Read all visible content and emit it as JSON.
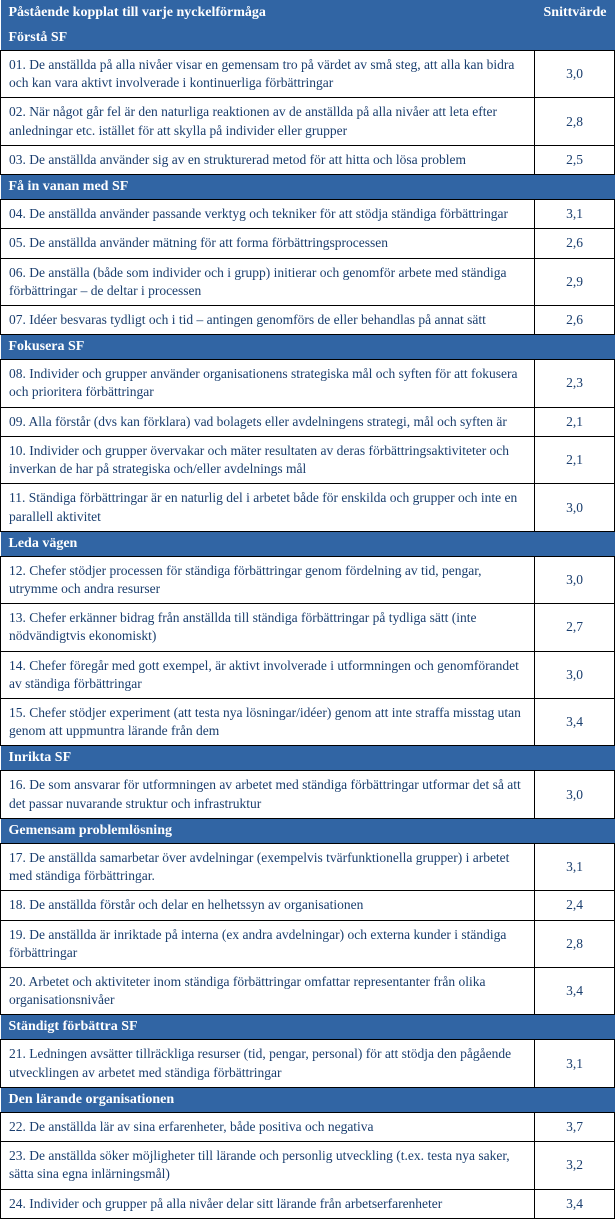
{
  "header": {
    "statement_label": "Påstående kopplat till varje nyckelförmåga",
    "value_label": "Snittvärde"
  },
  "sections": [
    {
      "title": "Förstå SF",
      "rows": [
        {
          "text": "01. De anställda på alla nivåer visar en gemensam tro på värdet av små steg, att alla kan bidra och kan vara aktivt involverade i kontinuerliga förbättringar",
          "value": "3,0"
        },
        {
          "text": "02. När något går fel är den naturliga reaktionen av de anställda på alla nivåer att leta efter anledningar etc. istället för att skylla på individer eller grupper",
          "value": "2,8"
        },
        {
          "text": "03. De anställda använder sig av en strukturerad metod för att hitta och lösa problem",
          "value": "2,5"
        }
      ]
    },
    {
      "title": "Få in vanan med SF",
      "rows": [
        {
          "text": "04. De anställda använder passande verktyg och tekniker för att stödja ständiga förbättringar",
          "value": "3,1"
        },
        {
          "text": "05. De anställda använder mätning för att forma förbättringsprocessen",
          "value": "2,6"
        },
        {
          "text": "06.  De anställa (både som individer och i grupp) initierar och genomför arbete med ständiga förbättringar – de deltar i processen",
          "value": "2,9"
        },
        {
          "text": "07. Idéer besvaras tydligt och i tid – antingen genomförs de eller behandlas på annat sätt",
          "value": "2,6"
        }
      ]
    },
    {
      "title": "Fokusera SF",
      "rows": [
        {
          "text": "08. Individer och grupper använder organisationens strategiska mål och syften för att fokusera och prioritera förbättringar",
          "value": "2,3"
        },
        {
          "text": "09. Alla förstår (dvs kan förklara) vad bolagets eller avdelningens strategi, mål och syften är",
          "value": "2,1"
        },
        {
          "text": "10. Individer och grupper övervakar och mäter resultaten av deras förbättringsaktiviteter och inverkan de har på strategiska och/eller avdelnings mål",
          "value": "2,1"
        },
        {
          "text": "11. Ständiga förbättringar är en naturlig del i arbetet både för enskilda och grupper och inte en parallell aktivitet",
          "value": "3,0"
        }
      ]
    },
    {
      "title": "Leda vägen",
      "rows": [
        {
          "text": "12. Chefer stödjer processen för ständiga förbättringar genom fördelning av tid, pengar, utrymme och andra resurser",
          "value": "3,0"
        },
        {
          "text": "13. Chefer erkänner bidrag från anställda till ständiga förbättringar på tydliga sätt (inte nödvändigtvis ekonomiskt)",
          "value": "2,7"
        },
        {
          "text": "14. Chefer föregår med gott exempel, är aktivt involverade i utformningen och genomförandet av ständiga förbättringar",
          "value": "3,0"
        },
        {
          "text": "15. Chefer stödjer experiment (att testa nya lösningar/idéer) genom att inte straffa misstag utan genom att uppmuntra lärande från dem",
          "value": "3,4"
        }
      ]
    },
    {
      "title": "Inrikta SF",
      "rows": [
        {
          "text": "16. De som ansvarar för utformningen av arbetet med ständiga förbättringar utformar det så att det passar nuvarande struktur och infrastruktur",
          "value": "3,0"
        }
      ]
    },
    {
      "title": "Gemensam problemlösning",
      "rows": [
        {
          "text": "17. De anställda samarbetar över avdelningar (exempelvis tvärfunktionella grupper) i arbetet med ständiga förbättringar.",
          "value": "3,1"
        },
        {
          "text": "18. De anställda förstår och delar en helhetssyn av organisationen",
          "value": "2,4"
        },
        {
          "text": "19. De anställda är inriktade på interna (ex andra avdelningar) och externa kunder i ständiga förbättringar",
          "value": "2,8"
        },
        {
          "text": "20. Arbetet och aktiviteter inom ständiga förbättringar omfattar representanter från olika organisationsnivåer",
          "value": "3,4"
        }
      ]
    },
    {
      "title": "Ständigt förbättra SF",
      "rows": [
        {
          "text": "21. Ledningen avsätter tillräckliga resurser (tid, pengar, personal) för att stödja den pågående utvecklingen av arbetet med ständiga förbättringar",
          "value": "3,1"
        }
      ]
    },
    {
      "title": "Den lärande organisationen",
      "rows": [
        {
          "text": "22. De anställda lär av sina erfarenheter, både positiva och negativa",
          "value": "3,7"
        },
        {
          "text": "23. De anställda söker möjligheter till lärande och personlig utveckling (t.ex. testa nya saker, sätta sina egna inlärningsmål)",
          "value": "3,2"
        },
        {
          "text": "24. Individer och grupper på alla nivåer delar sitt lärande från arbetserfarenheter",
          "value": "3,4"
        }
      ]
    }
  ],
  "colors": {
    "section_bg": "#3165a4",
    "section_text": "#ffffff",
    "cell_text": "#1a3e6e",
    "border": "#000000",
    "background": "#ffffff"
  }
}
